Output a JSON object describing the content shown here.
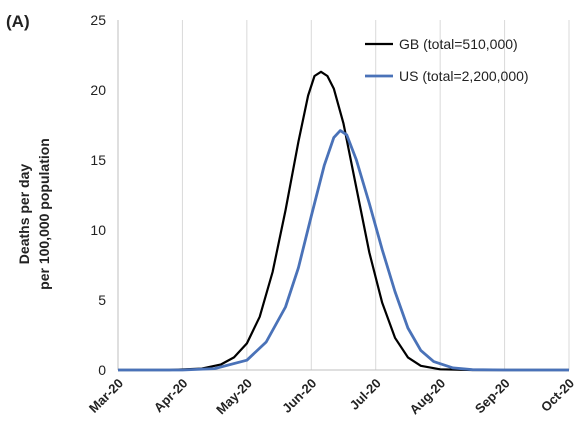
{
  "panel_label": "(A)",
  "chart_data": {
    "type": "line",
    "ylabel_line1": "Deaths per day",
    "ylabel_line2": "per 100,000 population",
    "xlabel": "",
    "categories": [
      "Mar-20",
      "Apr-20",
      "May-20",
      "Jun-20",
      "Jul-20",
      "Aug-20",
      "Sep-20",
      "Oct-20"
    ],
    "ylim": [
      0,
      25
    ],
    "yticks": [
      0,
      5,
      10,
      15,
      20,
      25
    ],
    "grid": "vertical",
    "legend_position": "top-right",
    "series": [
      {
        "name": "GB (total=510,000)",
        "color": "#000000",
        "points": [
          [
            0,
            0
          ],
          [
            0.8,
            0
          ],
          [
            1.3,
            0.1
          ],
          [
            1.6,
            0.4
          ],
          [
            1.8,
            0.9
          ],
          [
            2.0,
            1.9
          ],
          [
            2.2,
            3.8
          ],
          [
            2.4,
            7.0
          ],
          [
            2.6,
            11.4
          ],
          [
            2.8,
            16.3
          ],
          [
            2.95,
            19.6
          ],
          [
            3.05,
            21.0
          ],
          [
            3.15,
            21.3
          ],
          [
            3.25,
            21.0
          ],
          [
            3.35,
            20.1
          ],
          [
            3.5,
            17.6
          ],
          [
            3.7,
            13.0
          ],
          [
            3.9,
            8.4
          ],
          [
            4.1,
            4.8
          ],
          [
            4.3,
            2.3
          ],
          [
            4.5,
            0.9
          ],
          [
            4.7,
            0.3
          ],
          [
            5.0,
            0.05
          ],
          [
            5.5,
            0
          ],
          [
            7,
            0
          ]
        ]
      },
      {
        "name": "US (total=2,200,000)",
        "color": "#4a72b8",
        "points": [
          [
            0,
            0
          ],
          [
            1.0,
            0
          ],
          [
            1.5,
            0.1
          ],
          [
            2.0,
            0.7
          ],
          [
            2.3,
            2.0
          ],
          [
            2.6,
            4.5
          ],
          [
            2.8,
            7.3
          ],
          [
            3.0,
            11.0
          ],
          [
            3.2,
            14.6
          ],
          [
            3.35,
            16.6
          ],
          [
            3.45,
            17.1
          ],
          [
            3.55,
            16.8
          ],
          [
            3.7,
            15.0
          ],
          [
            3.9,
            11.9
          ],
          [
            4.1,
            8.6
          ],
          [
            4.3,
            5.6
          ],
          [
            4.5,
            3.0
          ],
          [
            4.7,
            1.4
          ],
          [
            4.9,
            0.6
          ],
          [
            5.2,
            0.15
          ],
          [
            5.5,
            0.02
          ],
          [
            6,
            0
          ],
          [
            7,
            0
          ]
        ]
      }
    ]
  }
}
